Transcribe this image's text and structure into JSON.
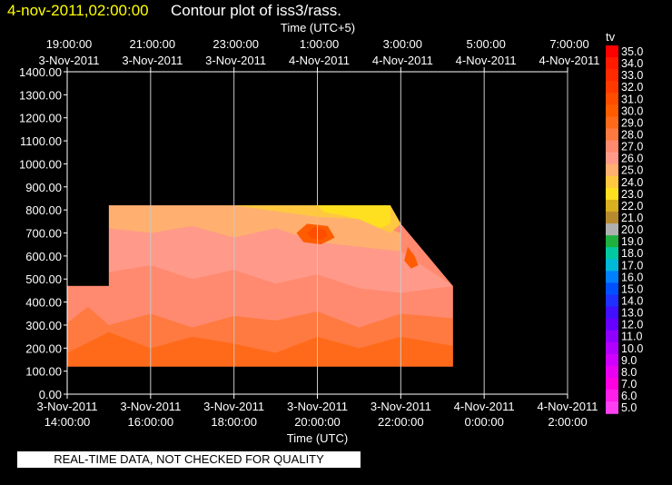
{
  "header": {
    "date": "4-nov-2011,02:00:00",
    "title": "Contour plot of iss3/rass."
  },
  "footer": {
    "note": "REAL-TIME DATA, NOT CHECKED FOR QUALITY"
  },
  "chart_data": {
    "type": "heatmap",
    "title": "Contour plot of iss3/rass.",
    "x_top_label": "Time (UTC+5)",
    "x_bottom_label": "Time (UTC)",
    "ylabel": "",
    "ylim": [
      0,
      1400
    ],
    "yticks": [
      "0.00",
      "100.00",
      "200.00",
      "300.00",
      "400.00",
      "500.00",
      "600.00",
      "700.00",
      "800.00",
      "900.00",
      "1000.00",
      "1100.00",
      "1200.00",
      "1300.00",
      "1400.00"
    ],
    "xlim_utc": [
      "2011-11-03 14:00",
      "2011-11-04 02:00"
    ],
    "x_bottom_ticks": [
      {
        "date": "3-Nov-2011",
        "time": "14:00:00"
      },
      {
        "date": "3-Nov-2011",
        "time": "16:00:00"
      },
      {
        "date": "3-Nov-2011",
        "time": "18:00:00"
      },
      {
        "date": "3-Nov-2011",
        "time": "20:00:00"
      },
      {
        "date": "3-Nov-2011",
        "time": "22:00:00"
      },
      {
        "date": "4-Nov-2011",
        "time": "0:00:00"
      },
      {
        "date": "4-Nov-2011",
        "time": "2:00:00"
      }
    ],
    "x_top_ticks": [
      {
        "time": "19:00:00",
        "date": "3-Nov-2011"
      },
      {
        "time": "21:00:00",
        "date": "3-Nov-2011"
      },
      {
        "time": "23:00:00",
        "date": "3-Nov-2011"
      },
      {
        "time": "1:00:00",
        "date": "4-Nov-2011"
      },
      {
        "time": "3:00:00",
        "date": "4-Nov-2011"
      },
      {
        "time": "5:00:00",
        "date": "4-Nov-2011"
      },
      {
        "time": "7:00:00",
        "date": "4-Nov-2011"
      }
    ],
    "grid": true,
    "colorbar": {
      "label": "tv",
      "levels": [
        "35.0",
        "34.0",
        "33.0",
        "32.0",
        "31.0",
        "30.0",
        "29.0",
        "28.0",
        "27.0",
        "26.0",
        "25.0",
        "24.0",
        "23.0",
        "22.0",
        "21.0",
        "20.0",
        "19.0",
        "18.0",
        "17.0",
        "16.0",
        "15.0",
        "14.0",
        "13.0",
        "12.0",
        "11.0",
        "10.0",
        "9.0",
        "8.0",
        "7.0",
        "6.0",
        "5.0"
      ],
      "colors": [
        "#ff0000",
        "#ff1a00",
        "#ff2a00",
        "#ff3a00",
        "#ff4d00",
        "#ff5c00",
        "#ff6a1a",
        "#ff7a40",
        "#ff8a70",
        "#ff9a8a",
        "#ffb070",
        "#ffc840",
        "#ffe020",
        "#d8b020",
        "#b88a30",
        "#b0b0b0",
        "#20b040",
        "#00c8a0",
        "#00b8d8",
        "#0080ff",
        "#0050ff",
        "#2030ff",
        "#4010ff",
        "#6800ff",
        "#9000ff",
        "#b000ff",
        "#d000ff",
        "#e800f0",
        "#ff00e0",
        "#ff20e8",
        "#ff40f0"
      ]
    },
    "coverage": {
      "height_bottom": 120,
      "outline_utc_height": [
        [
          "14:00",
          470
        ],
        [
          "15:00",
          470
        ],
        [
          "15:00",
          820
        ],
        [
          "21:45",
          820
        ],
        [
          "22:00",
          740
        ],
        [
          "23:15",
          470
        ],
        [
          "23:15",
          120
        ],
        [
          "14:00",
          120
        ]
      ]
    },
    "contour_bands": [
      {
        "level": "29.0",
        "points": [
          [
            "14:00",
            120
          ],
          [
            "14:00",
            180
          ],
          [
            "15:00",
            270
          ],
          [
            "16:00",
            200
          ],
          [
            "17:00",
            250
          ],
          [
            "18:00",
            220
          ],
          [
            "19:00",
            180
          ],
          [
            "20:00",
            250
          ],
          [
            "21:00",
            200
          ],
          [
            "22:00",
            250
          ],
          [
            "23:15",
            210
          ],
          [
            "23:15",
            120
          ]
        ]
      },
      {
        "level": "28.0",
        "points": [
          [
            "14:00",
            180
          ],
          [
            "14:00",
            310
          ],
          [
            "14:30",
            380
          ],
          [
            "15:00",
            300
          ],
          [
            "16:00",
            350
          ],
          [
            "17:00",
            290
          ],
          [
            "18:00",
            340
          ],
          [
            "19:00",
            320
          ],
          [
            "20:00",
            360
          ],
          [
            "21:00",
            290
          ],
          [
            "22:00",
            350
          ],
          [
            "23:15",
            330
          ],
          [
            "23:15",
            210
          ],
          [
            "22:00",
            250
          ],
          [
            "21:00",
            200
          ],
          [
            "20:00",
            250
          ],
          [
            "19:00",
            180
          ],
          [
            "18:00",
            220
          ],
          [
            "17:00",
            250
          ],
          [
            "16:00",
            200
          ],
          [
            "15:00",
            270
          ]
        ]
      },
      {
        "level": "27.0",
        "points": [
          [
            "14:00",
            310
          ],
          [
            "14:00",
            470
          ],
          [
            "15:00",
            470
          ],
          [
            "15:00",
            530
          ],
          [
            "16:00",
            560
          ],
          [
            "17:00",
            500
          ],
          [
            "18:00",
            540
          ],
          [
            "19:00",
            480
          ],
          [
            "20:00",
            520
          ],
          [
            "21:00",
            460
          ],
          [
            "22:00",
            440
          ],
          [
            "23:15",
            470
          ],
          [
            "23:15",
            330
          ],
          [
            "22:00",
            350
          ],
          [
            "21:00",
            290
          ],
          [
            "20:00",
            360
          ],
          [
            "19:00",
            320
          ],
          [
            "18:00",
            340
          ],
          [
            "17:00",
            290
          ],
          [
            "16:00",
            350
          ],
          [
            "15:00",
            300
          ],
          [
            "14:30",
            380
          ]
        ]
      },
      {
        "level": "26.0",
        "points": [
          [
            "15:00",
            530
          ],
          [
            "15:00",
            720
          ],
          [
            "16:00",
            700
          ],
          [
            "17:00",
            730
          ],
          [
            "18:00",
            680
          ],
          [
            "19:00",
            720
          ],
          [
            "20:00",
            660
          ],
          [
            "21:00",
            640
          ],
          [
            "22:00",
            620
          ],
          [
            "23:15",
            470
          ],
          [
            "22:00",
            440
          ],
          [
            "21:00",
            460
          ],
          [
            "20:00",
            520
          ],
          [
            "19:00",
            480
          ],
          [
            "18:00",
            540
          ],
          [
            "17:00",
            500
          ],
          [
            "16:00",
            560
          ]
        ]
      },
      {
        "level": "25.0",
        "points": [
          [
            "15:00",
            720
          ],
          [
            "15:00",
            820
          ],
          [
            "20:30",
            820
          ],
          [
            "21:00",
            760
          ],
          [
            "22:00",
            700
          ],
          [
            "22:00",
            620
          ],
          [
            "21:00",
            640
          ],
          [
            "20:00",
            660
          ],
          [
            "19:00",
            720
          ],
          [
            "18:00",
            680
          ],
          [
            "17:00",
            730
          ],
          [
            "16:00",
            700
          ]
        ]
      },
      {
        "level": "24.0",
        "points": [
          [
            "18:00",
            820
          ],
          [
            "20:00",
            770
          ],
          [
            "21:00",
            760
          ],
          [
            "21:45",
            700
          ],
          [
            "22:00",
            740
          ],
          [
            "21:45",
            820
          ]
        ]
      },
      {
        "level": "23.0",
        "points": [
          [
            "20:00",
            820
          ],
          [
            "20:10",
            790
          ],
          [
            "20:30",
            780
          ],
          [
            "21:00",
            760
          ],
          [
            "21:30",
            720
          ],
          [
            "21:45",
            740
          ],
          [
            "21:45",
            820
          ]
        ]
      },
      {
        "level": "30.0",
        "points": [
          [
            "19:30",
            700
          ],
          [
            "19:45",
            740
          ],
          [
            "20:15",
            730
          ],
          [
            "20:25",
            680
          ],
          [
            "20:05",
            650
          ],
          [
            "19:40",
            660
          ]
        ]
      },
      {
        "level": "31.0",
        "points": [
          [
            "19:45",
            700
          ],
          [
            "19:55",
            725
          ],
          [
            "20:10",
            715
          ],
          [
            "20:15",
            690
          ],
          [
            "20:05",
            670
          ],
          [
            "19:50",
            680
          ]
        ]
      },
      {
        "level": "30.0",
        "points": [
          [
            "22:10",
            640
          ],
          [
            "22:20",
            600
          ],
          [
            "22:25",
            560
          ],
          [
            "22:15",
            545
          ],
          [
            "22:05",
            580
          ]
        ]
      }
    ]
  }
}
